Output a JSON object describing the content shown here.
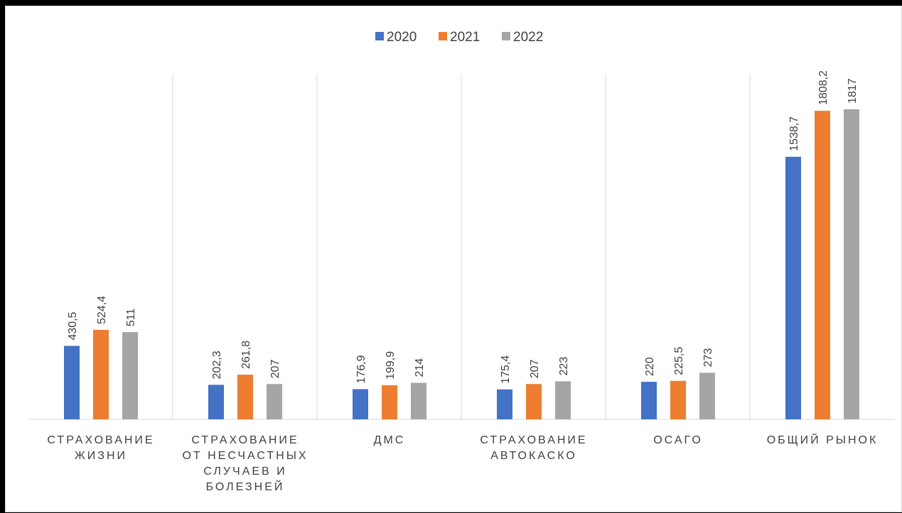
{
  "chart_data": {
    "type": "bar",
    "categories": [
      [
        "СТРАХОВАНИЕ",
        "ЖИЗНИ"
      ],
      [
        "СТРАХОВАНИЕ",
        "ОТ НЕСЧАСТНЫХ",
        "СЛУЧАЕВ И",
        "БОЛЕЗНЕЙ"
      ],
      [
        "ДМС"
      ],
      [
        "СТРАХОВАНИЕ",
        "АВТОКАСКО"
      ],
      [
        "ОСАГО"
      ],
      [
        "ОБЩИЙ РЫНОК"
      ]
    ],
    "series": [
      {
        "name": "2020",
        "color": "#4472c4",
        "values": [
          430.5,
          202.3,
          176.9,
          175.4,
          220,
          1538.7
        ],
        "labels": [
          "430,5",
          "202,3",
          "176,9",
          "175,4",
          "220",
          "1538,7"
        ]
      },
      {
        "name": "2021",
        "color": "#ed7d31",
        "values": [
          524.4,
          261.8,
          199.9,
          207,
          225.5,
          1808.2
        ],
        "labels": [
          "524,4",
          "261,8",
          "199,9",
          "207",
          "225,5",
          "1808,2"
        ]
      },
      {
        "name": "2022",
        "color": "#a5a5a5",
        "values": [
          511,
          207,
          214,
          223,
          273,
          1817
        ],
        "labels": [
          "511",
          "207",
          "214",
          "223",
          "273",
          "1817"
        ]
      }
    ],
    "ylim": [
      0,
      2000
    ],
    "legend_position": "top",
    "grid": "vertical separators between categories"
  }
}
